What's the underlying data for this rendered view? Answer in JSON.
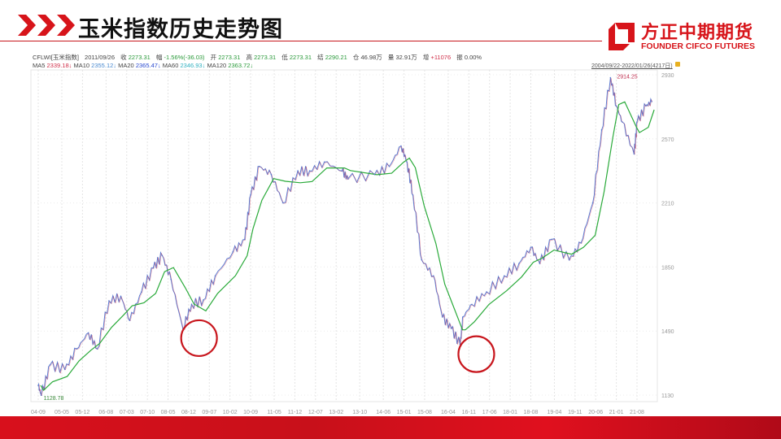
{
  "header": {
    "title": "玉米指数历史走势图"
  },
  "logo": {
    "cn": "方正中期期货",
    "en": "FOUNDER CIFCO FUTURES"
  },
  "quote": {
    "symbol": "CFLWI[玉米指数]",
    "date": "2011/09/26",
    "close_label": "收",
    "close": "2273.31",
    "change_label": "幅",
    "change": "-1.56%(-36.03)",
    "open_label": "开",
    "open": "2273.31",
    "high_label": "高",
    "high": "2273.31",
    "low_label": "低",
    "low": "2273.31",
    "settle_label": "结",
    "settle": "2290.21",
    "oi_label": "仓",
    "oi": "46.98万",
    "vol_label": "量",
    "vol": "32.91万",
    "inc_label": "增",
    "inc": "+11076",
    "amp_label": "振",
    "amp": "0.00%"
  },
  "ma": [
    {
      "label": "MA5",
      "value": "2339.18↓",
      "color": "#d0304a"
    },
    {
      "label": "MA10",
      "value": "2355.12↓",
      "color": "#4a8ad0"
    },
    {
      "label": "MA20",
      "value": "2365.47↓",
      "color": "#2a4ad0"
    },
    {
      "label": "MA60",
      "value": "2346.93↓",
      "color": "#30b0c0"
    },
    {
      "label": "MA120",
      "value": "2363.72↓",
      "color": "#2a9a3a"
    }
  ],
  "range_label": "2004/09/22-2022/01/26(4217日)",
  "chart_data": {
    "type": "line",
    "ylim": [
      1130,
      2930
    ],
    "yticks": [
      2930,
      2570,
      2210,
      1850,
      1490,
      1130
    ],
    "xtick_labels": [
      "04-09",
      "05-05",
      "05-12",
      "06-08",
      "07-03",
      "07-10",
      "08-05",
      "08-12",
      "09-07",
      "10-02",
      "10-09",
      "11-05",
      "11-12",
      "12-07",
      "13-02",
      "13-10",
      "14-06",
      "15-01",
      "15-08",
      "16-04",
      "16-11",
      "17-06",
      "18-01",
      "18-08",
      "19-04",
      "19-11",
      "20-06",
      "21-01",
      "21-08"
    ],
    "grid": true,
    "max_label": "2914.25",
    "min_label": "1128.78",
    "points": [
      [
        "2004-09",
        1185
      ],
      [
        "2004-10",
        1129
      ],
      [
        "2005-01",
        1300
      ],
      [
        "2005-06",
        1275
      ],
      [
        "2005-10",
        1390
      ],
      [
        "2006-02",
        1480
      ],
      [
        "2006-05",
        1390
      ],
      [
        "2006-09",
        1660
      ],
      [
        "2007-01",
        1685
      ],
      [
        "2007-04",
        1550
      ],
      [
        "2007-08",
        1710
      ],
      [
        "2007-12",
        1845
      ],
      [
        "2008-03",
        1915
      ],
      [
        "2008-06",
        1780
      ],
      [
        "2008-10",
        1505
      ],
      [
        "2009-01",
        1640
      ],
      [
        "2009-05",
        1665
      ],
      [
        "2009-09",
        1800
      ],
      [
        "2010-03",
        1935
      ],
      [
        "2010-07",
        2005
      ],
      [
        "2010-09",
        2255
      ],
      [
        "2010-12",
        2415
      ],
      [
        "2011-04",
        2370
      ],
      [
        "2011-08",
        2210
      ],
      [
        "2012-01",
        2390
      ],
      [
        "2012-05",
        2390
      ],
      [
        "2012-10",
        2440
      ],
      [
        "2013-04",
        2390
      ],
      [
        "2013-06",
        2345
      ],
      [
        "2014-03",
        2370
      ],
      [
        "2014-08",
        2415
      ],
      [
        "2014-12",
        2530
      ],
      [
        "2015-02",
        2440
      ],
      [
        "2015-04",
        2255
      ],
      [
        "2015-07",
        1890
      ],
      [
        "2015-11",
        1800
      ],
      [
        "2016-02",
        1570
      ],
      [
        "2016-05",
        1505
      ],
      [
        "2016-08",
        1415
      ],
      [
        "2016-09",
        1570
      ],
      [
        "2016-12",
        1640
      ],
      [
        "2017-05",
        1710
      ],
      [
        "2017-11",
        1800
      ],
      [
        "2018-04",
        1870
      ],
      [
        "2018-08",
        1960
      ],
      [
        "2018-11",
        1870
      ],
      [
        "2019-03",
        2005
      ],
      [
        "2019-09",
        1890
      ],
      [
        "2020-01",
        1985
      ],
      [
        "2020-05",
        2210
      ],
      [
        "2020-08",
        2620
      ],
      [
        "2020-11",
        2914
      ],
      [
        "2021-01",
        2755
      ],
      [
        "2021-03",
        2665
      ],
      [
        "2021-07",
        2485
      ],
      [
        "2021-08",
        2665
      ],
      [
        "2021-11",
        2755
      ],
      [
        "2022-01",
        2780
      ]
    ],
    "highlight_circles": [
      "2008-10",
      "2016-08"
    ],
    "colors": {
      "price": "#5a7ad0",
      "ma": "#2aaa3a",
      "circle": "#c8161d"
    }
  }
}
